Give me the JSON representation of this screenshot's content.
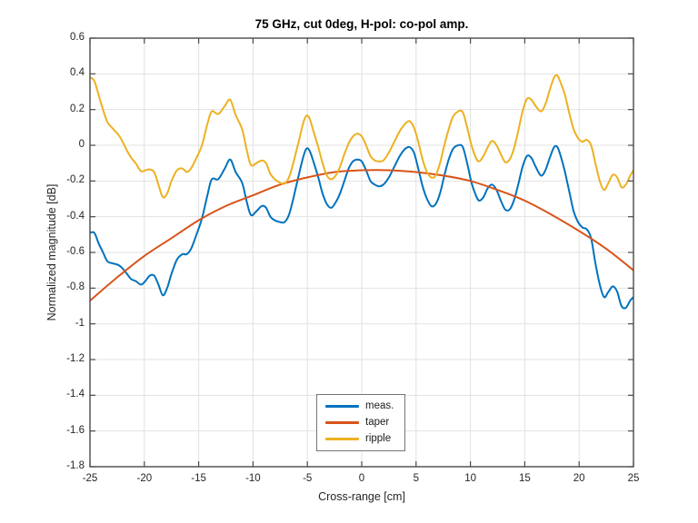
{
  "chart_data": {
    "type": "line",
    "title": "75 GHz, cut 0deg, H-pol: co-pol amp.",
    "xlabel": "Cross-range [cm]",
    "ylabel": "Normalized magnitude [dB]",
    "xlim": [
      -25,
      25
    ],
    "ylim": [
      -1.8,
      0.6
    ],
    "grid": true,
    "legend_location": "south-inside",
    "xticks": [
      -25,
      -20,
      -15,
      -10,
      -5,
      0,
      5,
      10,
      15,
      20,
      25
    ],
    "xtick_labels": [
      "-25",
      "-20",
      "-15",
      "-10",
      "-5",
      "0",
      "5",
      "10",
      "15",
      "20",
      "25"
    ],
    "yticks": [
      0.6,
      0.4,
      0.2,
      0,
      -0.2,
      -0.4,
      -0.6,
      -0.8,
      -1,
      -1.2,
      -1.4,
      -1.6,
      -1.8
    ],
    "ytick_labels": [
      "0.6",
      "0.4",
      "0.2",
      "0",
      "-0.2",
      "-0.4",
      "-0.6",
      "-0.8",
      "-1",
      "-1.2",
      "-1.4",
      "-1.6",
      "-1.8"
    ],
    "colors": {
      "axes": "#4a4a4a",
      "grid": "#e2e2e2",
      "background": "#ffffff"
    },
    "series": [
      {
        "name": "meas.",
        "color": "#0072BD",
        "x": [
          -25,
          -24.6,
          -24.2,
          -23.8,
          -23.4,
          -23,
          -22.4,
          -22,
          -21.6,
          -21.2,
          -20.8,
          -20.3,
          -19.9,
          -19.5,
          -19.1,
          -18.7,
          -18.3,
          -17.9,
          -17.5,
          -17,
          -16.5,
          -16.1,
          -15.7,
          -15.2,
          -14.7,
          -14.2,
          -13.8,
          -13.2,
          -12.6,
          -12.1,
          -11.6,
          -11,
          -10.6,
          -10.2,
          -9.7,
          -9.2,
          -8.8,
          -8.4,
          -8,
          -7.5,
          -7.1,
          -6.7,
          -6.3,
          -5.8,
          -5.4,
          -5.1,
          -4.8,
          -4.4,
          -4,
          -3.6,
          -3.2,
          -2.8,
          -2.4,
          -2,
          -1.6,
          -1.2,
          -0.8,
          -0.4,
          0,
          0.4,
          0.8,
          1.2,
          1.6,
          2,
          2.5,
          3,
          3.5,
          4,
          4.4,
          4.8,
          5.2,
          5.6,
          6,
          6.4,
          6.8,
          7.2,
          7.6,
          8,
          8.4,
          8.9,
          9.3,
          9.7,
          10.1,
          10.5,
          10.8,
          11.2,
          11.6,
          12,
          12.4,
          12.8,
          13.2,
          13.6,
          14,
          14.4,
          14.8,
          15.2,
          15.6,
          16,
          16.5,
          16.9,
          17.3,
          17.7,
          18,
          18.3,
          18.7,
          19.1,
          19.5,
          19.9,
          20.3,
          20.7,
          21.1,
          21.5,
          21.9,
          22.3,
          22.7,
          23.1,
          23.5,
          23.9,
          24.3,
          24.7,
          25
        ],
        "y": [
          -0.49,
          -0.49,
          -0.55,
          -0.6,
          -0.65,
          -0.66,
          -0.67,
          -0.69,
          -0.72,
          -0.75,
          -0.76,
          -0.78,
          -0.76,
          -0.73,
          -0.73,
          -0.78,
          -0.84,
          -0.8,
          -0.72,
          -0.64,
          -0.61,
          -0.61,
          -0.58,
          -0.5,
          -0.41,
          -0.28,
          -0.19,
          -0.19,
          -0.13,
          -0.08,
          -0.15,
          -0.21,
          -0.31,
          -0.39,
          -0.37,
          -0.34,
          -0.35,
          -0.4,
          -0.42,
          -0.43,
          -0.43,
          -0.39,
          -0.3,
          -0.17,
          -0.07,
          -0.02,
          -0.03,
          -0.1,
          -0.18,
          -0.27,
          -0.33,
          -0.35,
          -0.32,
          -0.27,
          -0.2,
          -0.13,
          -0.09,
          -0.08,
          -0.09,
          -0.14,
          -0.2,
          -0.22,
          -0.23,
          -0.22,
          -0.18,
          -0.12,
          -0.06,
          -0.02,
          -0.01,
          -0.04,
          -0.13,
          -0.23,
          -0.3,
          -0.34,
          -0.33,
          -0.27,
          -0.17,
          -0.08,
          -0.02,
          0.0,
          -0.01,
          -0.1,
          -0.21,
          -0.28,
          -0.31,
          -0.29,
          -0.24,
          -0.22,
          -0.25,
          -0.31,
          -0.36,
          -0.36,
          -0.31,
          -0.22,
          -0.12,
          -0.06,
          -0.07,
          -0.12,
          -0.17,
          -0.14,
          -0.07,
          -0.01,
          -0.01,
          -0.06,
          -0.15,
          -0.26,
          -0.37,
          -0.43,
          -0.46,
          -0.47,
          -0.52,
          -0.66,
          -0.78,
          -0.85,
          -0.82,
          -0.79,
          -0.82,
          -0.9,
          -0.91,
          -0.87,
          -0.85
        ]
      },
      {
        "name": "taper",
        "color": "#D95319",
        "x": [
          -25,
          -22.5,
          -20,
          -17.5,
          -15,
          -12.5,
          -10,
          -7.5,
          -5,
          -2.5,
          0,
          2.5,
          5,
          7.5,
          10,
          12.5,
          15,
          17.5,
          20,
          22.5,
          25
        ],
        "y": [
          -0.87,
          -0.74,
          -0.62,
          -0.52,
          -0.42,
          -0.34,
          -0.28,
          -0.22,
          -0.18,
          -0.15,
          -0.14,
          -0.14,
          -0.15,
          -0.17,
          -0.2,
          -0.25,
          -0.31,
          -0.39,
          -0.48,
          -0.58,
          -0.7
        ]
      },
      {
        "name": "ripple",
        "color": "#EDB120",
        "x": [
          -25,
          -24.6,
          -24.2,
          -23.8,
          -23.4,
          -23,
          -22.4,
          -22,
          -21.6,
          -21.2,
          -20.8,
          -20.3,
          -19.9,
          -19.5,
          -19.1,
          -18.7,
          -18.3,
          -17.9,
          -17.5,
          -17,
          -16.5,
          -16.1,
          -15.7,
          -15.2,
          -14.7,
          -14.2,
          -13.8,
          -13.2,
          -12.6,
          -12.1,
          -11.6,
          -11,
          -10.6,
          -10.2,
          -9.7,
          -9.2,
          -8.8,
          -8.4,
          -8,
          -7.5,
          -7.1,
          -6.7,
          -6.3,
          -5.8,
          -5.4,
          -5.1,
          -4.8,
          -4.4,
          -4,
          -3.6,
          -3.2,
          -2.8,
          -2.4,
          -2,
          -1.6,
          -1.2,
          -0.8,
          -0.4,
          0,
          0.4,
          0.8,
          1.2,
          1.6,
          2,
          2.5,
          3,
          3.5,
          4,
          4.4,
          4.8,
          5.2,
          5.6,
          6,
          6.4,
          6.8,
          7.2,
          7.6,
          8,
          8.4,
          8.9,
          9.3,
          9.7,
          10.1,
          10.5,
          10.8,
          11.2,
          11.6,
          12,
          12.4,
          12.8,
          13.2,
          13.6,
          14,
          14.4,
          14.8,
          15.2,
          15.6,
          16,
          16.5,
          16.9,
          17.3,
          17.7,
          18,
          18.3,
          18.7,
          19.1,
          19.5,
          19.9,
          20.3,
          20.7,
          21.1,
          21.5,
          21.9,
          22.3,
          22.7,
          23.1,
          23.5,
          23.9,
          24.3,
          24.7,
          25
        ],
        "y": [
          0.38,
          0.36,
          0.28,
          0.2,
          0.13,
          0.1,
          0.06,
          0.02,
          -0.03,
          -0.07,
          -0.1,
          -0.145,
          -0.14,
          -0.135,
          -0.15,
          -0.22,
          -0.29,
          -0.27,
          -0.2,
          -0.14,
          -0.13,
          -0.15,
          -0.13,
          -0.07,
          0.0,
          0.12,
          0.19,
          0.175,
          0.22,
          0.255,
          0.17,
          0.09,
          -0.02,
          -0.11,
          -0.1,
          -0.085,
          -0.1,
          -0.16,
          -0.19,
          -0.21,
          -0.215,
          -0.18,
          -0.1,
          0.02,
          0.12,
          0.165,
          0.15,
          0.07,
          -0.01,
          -0.1,
          -0.17,
          -0.19,
          -0.17,
          -0.12,
          -0.05,
          0.01,
          0.05,
          0.065,
          0.05,
          0.0,
          -0.06,
          -0.085,
          -0.09,
          -0.085,
          -0.04,
          0.02,
          0.08,
          0.12,
          0.135,
          0.1,
          0.02,
          -0.08,
          -0.15,
          -0.18,
          -0.17,
          -0.1,
          0.0,
          0.09,
          0.16,
          0.19,
          0.185,
          0.1,
          0.0,
          -0.07,
          -0.09,
          -0.06,
          -0.01,
          0.025,
          0.0,
          -0.05,
          -0.095,
          -0.08,
          -0.02,
          0.08,
          0.19,
          0.26,
          0.255,
          0.22,
          0.19,
          0.23,
          0.31,
          0.38,
          0.39,
          0.35,
          0.28,
          0.18,
          0.09,
          0.04,
          0.02,
          0.03,
          0.0,
          -0.1,
          -0.2,
          -0.25,
          -0.21,
          -0.165,
          -0.18,
          -0.235,
          -0.22,
          -0.17,
          -0.14
        ]
      }
    ]
  }
}
